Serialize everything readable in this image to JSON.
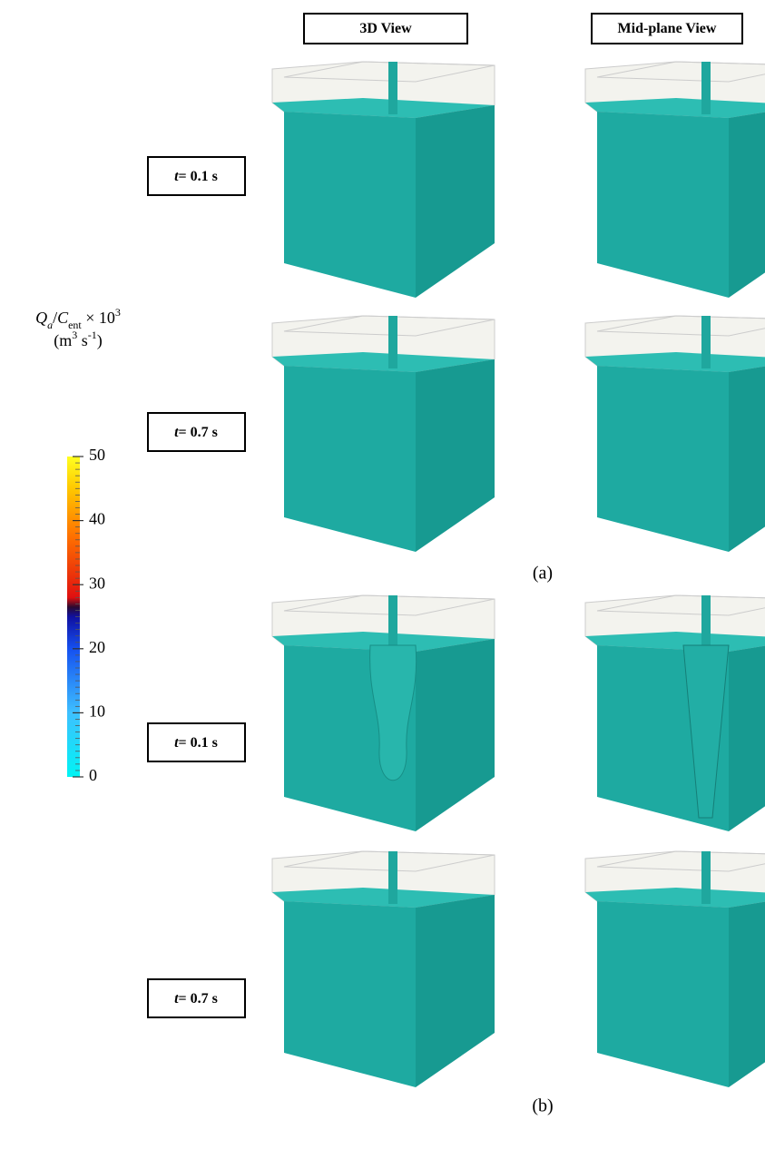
{
  "headers": [
    "3D View",
    "Mid-plane View"
  ],
  "rows": [
    {
      "var": "t",
      "label": "= 0.1 s"
    },
    {
      "var": "t",
      "label": "= 0.7 s"
    },
    {
      "var": "t",
      "label": "= 0.1 s"
    },
    {
      "var": "t",
      "label": "= 0.7 s"
    }
  ],
  "panels": [
    "(a)",
    "(b)"
  ],
  "colorbar": {
    "title": [
      "Q",
      "a",
      "/",
      "C",
      "ent",
      " × 10",
      "3"
    ],
    "units": [
      "(m",
      "3",
      " s",
      "-1",
      ")"
    ],
    "range": [
      0,
      50
    ],
    "ticks": [
      0,
      10,
      20,
      30,
      40,
      50
    ]
  }
}
